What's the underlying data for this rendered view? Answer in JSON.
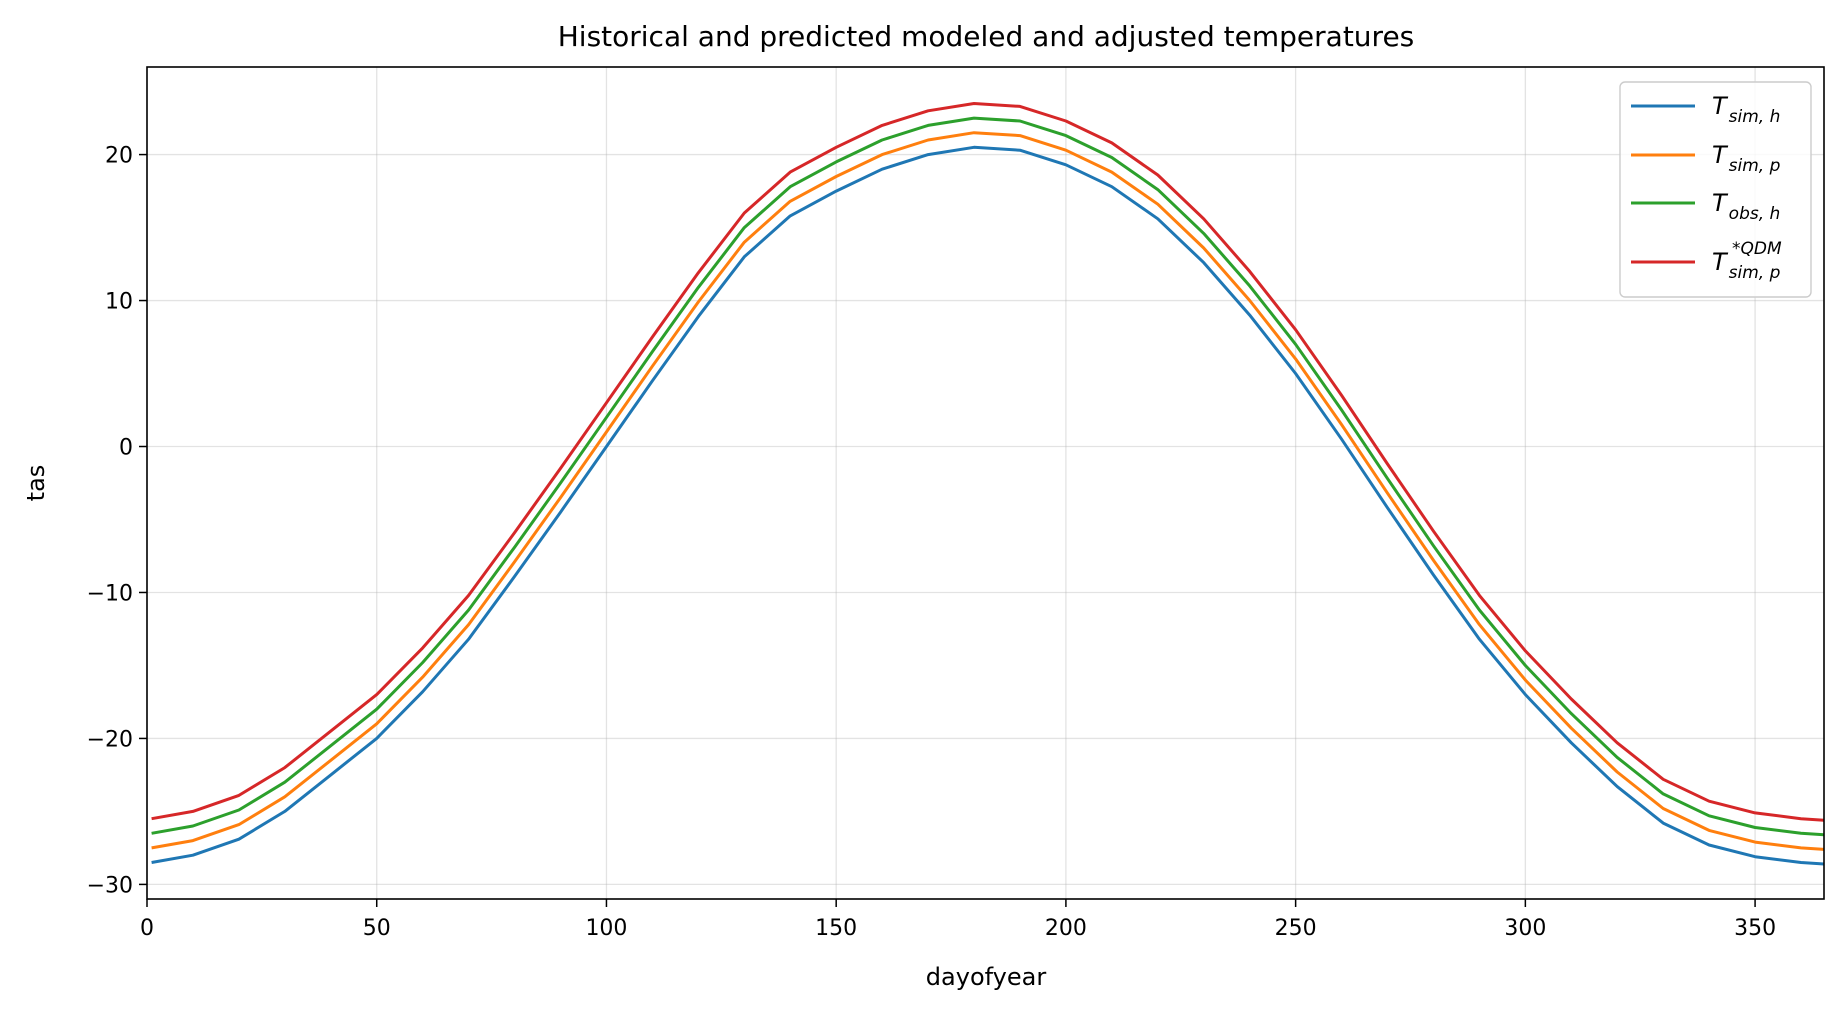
{
  "chart_data": {
    "type": "line",
    "title": "Historical and predicted modeled and adjusted temperatures",
    "xlabel": "dayofyear",
    "ylabel": "tas",
    "xlim": [
      0,
      365
    ],
    "ylim": [
      -31,
      26
    ],
    "xticks": [
      0,
      50,
      100,
      150,
      200,
      250,
      300,
      350
    ],
    "yticks": [
      -30,
      -20,
      -10,
      0,
      10,
      20
    ],
    "grid": true,
    "legend_position": "top-right",
    "series": [
      {
        "name": "T_sim,h",
        "label_main": "T",
        "label_sub": "sim, h",
        "label_sup": "",
        "color": "#1f77b4",
        "x": [
          1,
          10,
          20,
          30,
          40,
          50,
          60,
          70,
          80,
          90,
          100,
          110,
          120,
          130,
          140,
          150,
          160,
          170,
          180,
          190,
          200,
          210,
          220,
          230,
          240,
          250,
          260,
          270,
          280,
          290,
          300,
          310,
          320,
          330,
          340,
          350,
          360,
          365
        ],
        "values": [
          -28.5,
          -28.0,
          -26.9,
          -25.0,
          -22.5,
          -20.0,
          -16.8,
          -13.2,
          -8.9,
          -4.5,
          0.0,
          4.5,
          8.9,
          13.0,
          15.8,
          17.5,
          19.0,
          20.0,
          20.5,
          20.3,
          19.3,
          17.8,
          15.6,
          12.6,
          9.0,
          5.0,
          0.5,
          -4.2,
          -8.8,
          -13.2,
          -17.0,
          -20.3,
          -23.3,
          -25.8,
          -27.3,
          -28.1,
          -28.5,
          -28.6
        ]
      },
      {
        "name": "T_sim,p",
        "label_main": "T",
        "label_sub": "sim, p",
        "label_sup": "",
        "color": "#ff7f0e",
        "x": [
          1,
          10,
          20,
          30,
          40,
          50,
          60,
          70,
          80,
          90,
          100,
          110,
          120,
          130,
          140,
          150,
          160,
          170,
          180,
          190,
          200,
          210,
          220,
          230,
          240,
          250,
          260,
          270,
          280,
          290,
          300,
          310,
          320,
          330,
          340,
          350,
          360,
          365
        ],
        "values": [
          -27.5,
          -27.0,
          -25.9,
          -24.0,
          -21.5,
          -19.0,
          -15.8,
          -12.2,
          -7.9,
          -3.5,
          1.0,
          5.5,
          9.9,
          14.0,
          16.8,
          18.5,
          20.0,
          21.0,
          21.5,
          21.3,
          20.3,
          18.8,
          16.6,
          13.6,
          10.0,
          6.0,
          1.5,
          -3.2,
          -7.8,
          -12.2,
          -16.0,
          -19.3,
          -22.3,
          -24.8,
          -26.3,
          -27.1,
          -27.5,
          -27.6
        ]
      },
      {
        "name": "T_obs,h",
        "label_main": "T",
        "label_sub": "obs, h",
        "label_sup": "",
        "color": "#2ca02c",
        "x": [
          1,
          10,
          20,
          30,
          40,
          50,
          60,
          70,
          80,
          90,
          100,
          110,
          120,
          130,
          140,
          150,
          160,
          170,
          180,
          190,
          200,
          210,
          220,
          230,
          240,
          250,
          260,
          270,
          280,
          290,
          300,
          310,
          320,
          330,
          340,
          350,
          360,
          365
        ],
        "values": [
          -26.5,
          -26.0,
          -24.9,
          -23.0,
          -20.5,
          -18.0,
          -14.8,
          -11.2,
          -6.9,
          -2.5,
          2.0,
          6.5,
          10.9,
          15.0,
          17.8,
          19.5,
          21.0,
          22.0,
          22.5,
          22.3,
          21.3,
          19.8,
          17.6,
          14.6,
          11.0,
          7.0,
          2.5,
          -2.2,
          -6.8,
          -11.2,
          -15.0,
          -18.3,
          -21.3,
          -23.8,
          -25.3,
          -26.1,
          -26.5,
          -26.6
        ]
      },
      {
        "name": "T_sim,p *QDM",
        "label_main": "T",
        "label_sub": "sim, p",
        "label_sup": "*QDM",
        "color": "#d62728",
        "x": [
          1,
          10,
          20,
          30,
          40,
          50,
          60,
          70,
          80,
          90,
          100,
          110,
          120,
          130,
          140,
          150,
          160,
          170,
          180,
          190,
          200,
          210,
          220,
          230,
          240,
          250,
          260,
          270,
          280,
          290,
          300,
          310,
          320,
          330,
          340,
          350,
          360,
          365
        ],
        "values": [
          -25.5,
          -25.0,
          -23.9,
          -22.0,
          -19.5,
          -17.0,
          -13.8,
          -10.2,
          -5.9,
          -1.5,
          3.0,
          7.5,
          11.9,
          16.0,
          18.8,
          20.5,
          22.0,
          23.0,
          23.5,
          23.3,
          22.3,
          20.8,
          18.6,
          15.6,
          12.0,
          8.0,
          3.5,
          -1.2,
          -5.8,
          -10.2,
          -14.0,
          -17.3,
          -20.3,
          -22.8,
          -24.3,
          -25.1,
          -25.5,
          -25.6
        ]
      }
    ]
  }
}
